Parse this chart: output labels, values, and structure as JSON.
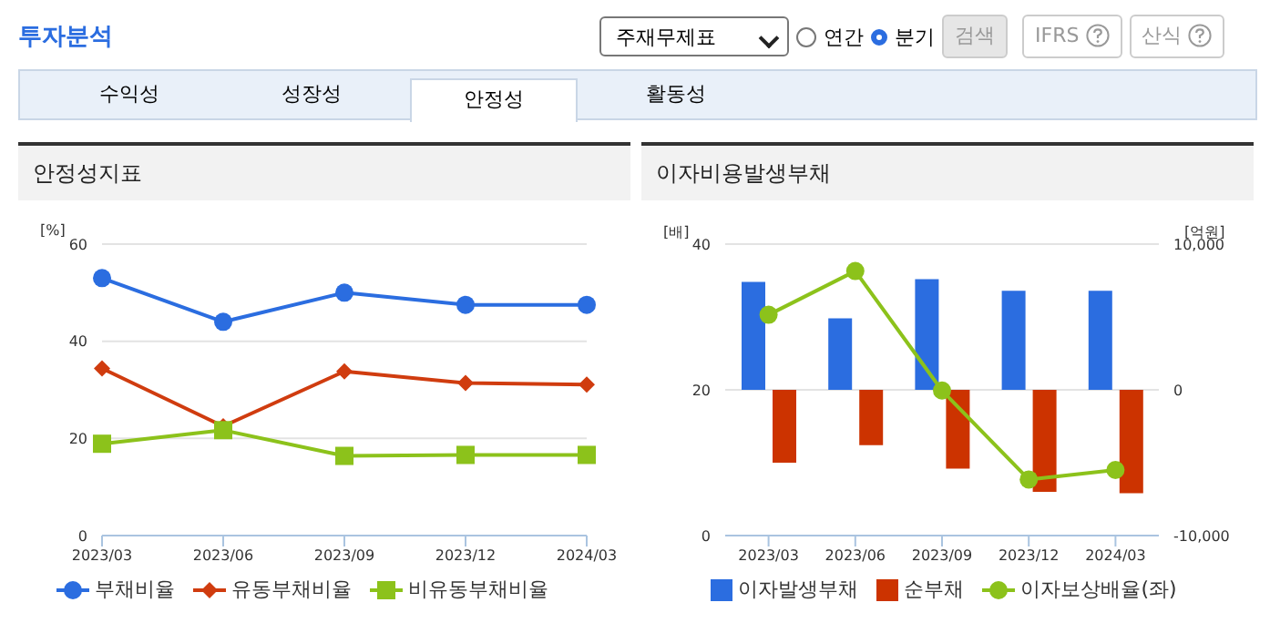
{
  "chart_data": [
    {
      "type": "line",
      "title": "안정성지표",
      "ylabel": "[%]",
      "categories": [
        "2023/03",
        "2023/06",
        "2023/09",
        "2023/12",
        "2024/03"
      ],
      "series": [
        {
          "name": "부채비율",
          "color": "#2b6de0",
          "marker": "circle",
          "values": [
            53,
            44,
            50,
            47.5,
            47.5
          ]
        },
        {
          "name": "유동부채비율",
          "color": "#d03c0f",
          "marker": "diamond",
          "values": [
            34.4,
            22.5,
            33.8,
            31.4,
            31.1
          ]
        },
        {
          "name": "비유동부채비율",
          "color": "#8cc21b",
          "marker": "square",
          "values": [
            18.9,
            21.7,
            16.4,
            16.6,
            16.6
          ]
        }
      ],
      "ylim": [
        0,
        60
      ],
      "yticks": [
        0,
        20,
        40,
        60
      ],
      "grid": "y",
      "legend": "bottom",
      "annotations": [
        "투자분석",
        "주재무제표",
        "연간",
        "분기",
        "검색",
        "IFRS",
        "산식",
        "수익성",
        "성장성",
        "안정성",
        "활동성"
      ]
    },
    {
      "type": "bar",
      "title": "이자비용발생부채",
      "ylabel": "[배]",
      "y2label": "[억원]",
      "categories": [
        "2023/03",
        "2023/06",
        "2023/09",
        "2023/12",
        "2024/03"
      ],
      "series": [
        {
          "name": "이자발생부채",
          "color": "#2b6de0",
          "axis": "y2",
          "values": [
            7400,
            4900,
            7600,
            6800,
            6800
          ]
        },
        {
          "name": "순부채",
          "color": "#cc3300",
          "axis": "y2",
          "values": [
            -5000,
            -3800,
            -5400,
            -7000,
            -7100
          ]
        },
        {
          "name": "이자보상배율(좌)",
          "type": "line",
          "color": "#8cc21b",
          "marker": "circle",
          "values": [
            30.3,
            36.3,
            19.9,
            7.7,
            9.0
          ]
        }
      ],
      "ylim": [
        0,
        40
      ],
      "yticks": [
        0,
        20,
        40
      ],
      "y2lim": [
        -10000,
        10000
      ],
      "y2ticks": [
        {
          "value": -10000,
          "label": "-10,000"
        },
        0,
        {
          "value": 10000,
          "label": "10,000"
        }
      ],
      "grid": "y",
      "legend": "bottom"
    }
  ]
}
